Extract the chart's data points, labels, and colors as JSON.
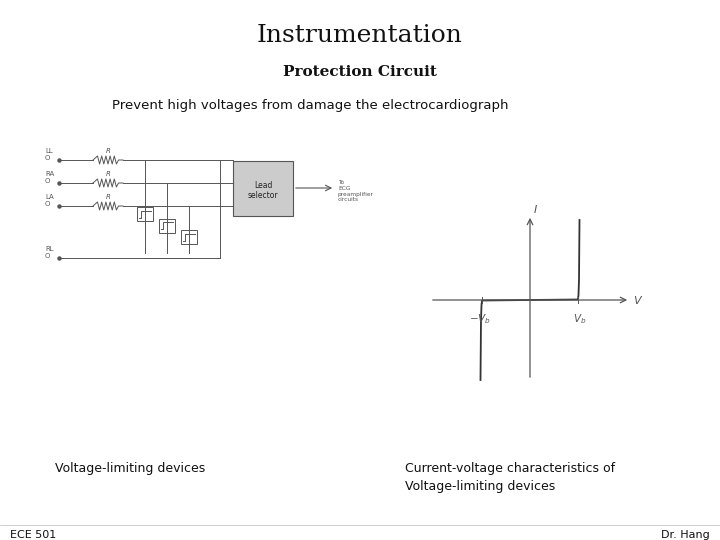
{
  "title": "Instrumentation",
  "subtitle": "Protection Circuit",
  "description": "Prevent high voltages from damage the electrocardiograph",
  "caption_left": "Voltage-limiting devices",
  "caption_right": "Current-voltage characteristics of\nVoltage-limiting devices",
  "footer_left": "ECE 501",
  "footer_right": "Dr. Hang",
  "bg_color": "#ffffff",
  "text_color": "#111111",
  "circuit_color": "#555555",
  "title_fontsize": 18,
  "subtitle_fontsize": 11,
  "desc_fontsize": 9.5,
  "caption_fontsize": 9,
  "footer_fontsize": 8
}
